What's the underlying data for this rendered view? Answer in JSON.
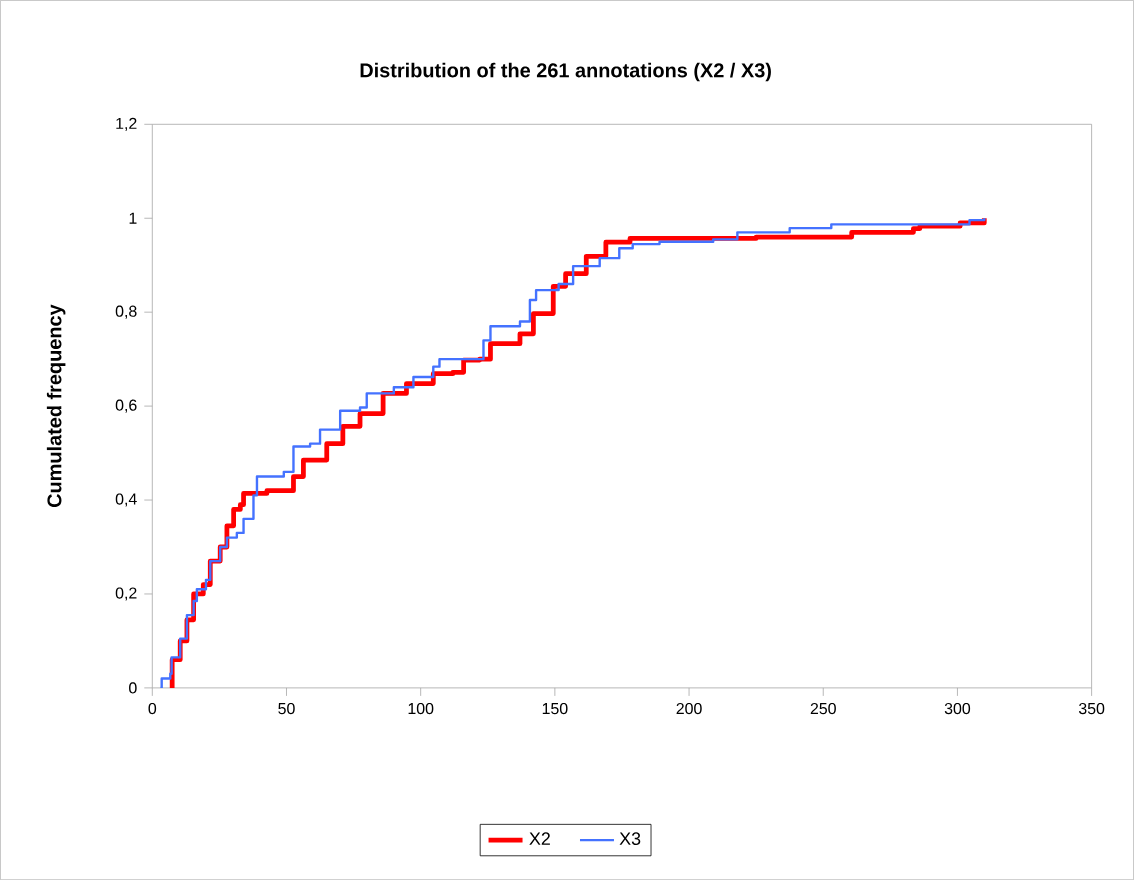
{
  "chart_data": {
    "type": "step",
    "title": "Distribution of the 261 annotations (X2 / X3)",
    "ylabel": "Cumulated frequency",
    "xlim": [
      0,
      350
    ],
    "xticks": [
      0,
      50,
      100,
      150,
      200,
      250,
      300,
      350
    ],
    "ylim": [
      0,
      1.2
    ],
    "yticks": [
      {
        "value": 0,
        "label": "0"
      },
      {
        "value": 0.2,
        "label": "0,2"
      },
      {
        "value": 0.4,
        "label": "0,4"
      },
      {
        "value": 0.6,
        "label": "0,6"
      },
      {
        "value": 0.8,
        "label": "0,8"
      },
      {
        "value": 1,
        "label": "1"
      },
      {
        "value": 1.2,
        "label": "1,2"
      }
    ],
    "grid": false,
    "legend": "bottom",
    "marker": "none",
    "line_style": "solid",
    "series": [
      {
        "name": "X2",
        "color": "#ff0000",
        "x": [
          7.4,
          7.4,
          10.4,
          12.9,
          15.4,
          19,
          21.6,
          25.3,
          27.8,
          30.3,
          32.8,
          34,
          42.7,
          52.6,
          56.3,
          65,
          71,
          77.4,
          86,
          94.7,
          104.7,
          112,
          116,
          122,
          126,
          137,
          142,
          149.4,
          154,
          161.7,
          169,
          178,
          225,
          260.6,
          283.6,
          286,
          301,
          310
        ],
        "values": [
          0,
          0.06,
          0.1,
          0.145,
          0.2,
          0.22,
          0.27,
          0.3,
          0.345,
          0.38,
          0.39,
          0.414,
          0.42,
          0.45,
          0.485,
          0.52,
          0.557,
          0.584,
          0.627,
          0.648,
          0.669,
          0.672,
          0.698,
          0.7,
          0.733,
          0.754,
          0.797,
          0.855,
          0.882,
          0.919,
          0.949,
          0.957,
          0.96,
          0.97,
          0.978,
          0.983,
          0.99,
          1.0
        ]
      },
      {
        "name": "X3",
        "color": "#4472ff",
        "x": [
          3,
          3.5,
          6.7,
          7.2,
          10.4,
          12.9,
          15.4,
          16.6,
          20,
          21.6,
          25.3,
          27.8,
          31.5,
          34,
          37.7,
          39,
          49,
          52.6,
          58.8,
          62.5,
          70,
          77.4,
          79.9,
          90,
          97.3,
          104.7,
          107,
          119.7,
          123.4,
          126,
          137,
          140.7,
          143,
          151.4,
          156.8,
          166.7,
          174,
          179,
          189,
          209,
          218,
          237.5,
          253,
          304.5,
          310
        ],
        "values": [
          0,
          0.02,
          0.03,
          0.065,
          0.105,
          0.155,
          0.185,
          0.21,
          0.23,
          0.27,
          0.3,
          0.32,
          0.33,
          0.36,
          0.41,
          0.45,
          0.46,
          0.514,
          0.52,
          0.55,
          0.59,
          0.597,
          0.627,
          0.64,
          0.662,
          0.684,
          0.7,
          0.7,
          0.74,
          0.77,
          0.78,
          0.826,
          0.847,
          0.86,
          0.898,
          0.915,
          0.936,
          0.945,
          0.95,
          0.955,
          0.97,
          0.979,
          0.987,
          0.996,
          1.0
        ]
      }
    ]
  }
}
